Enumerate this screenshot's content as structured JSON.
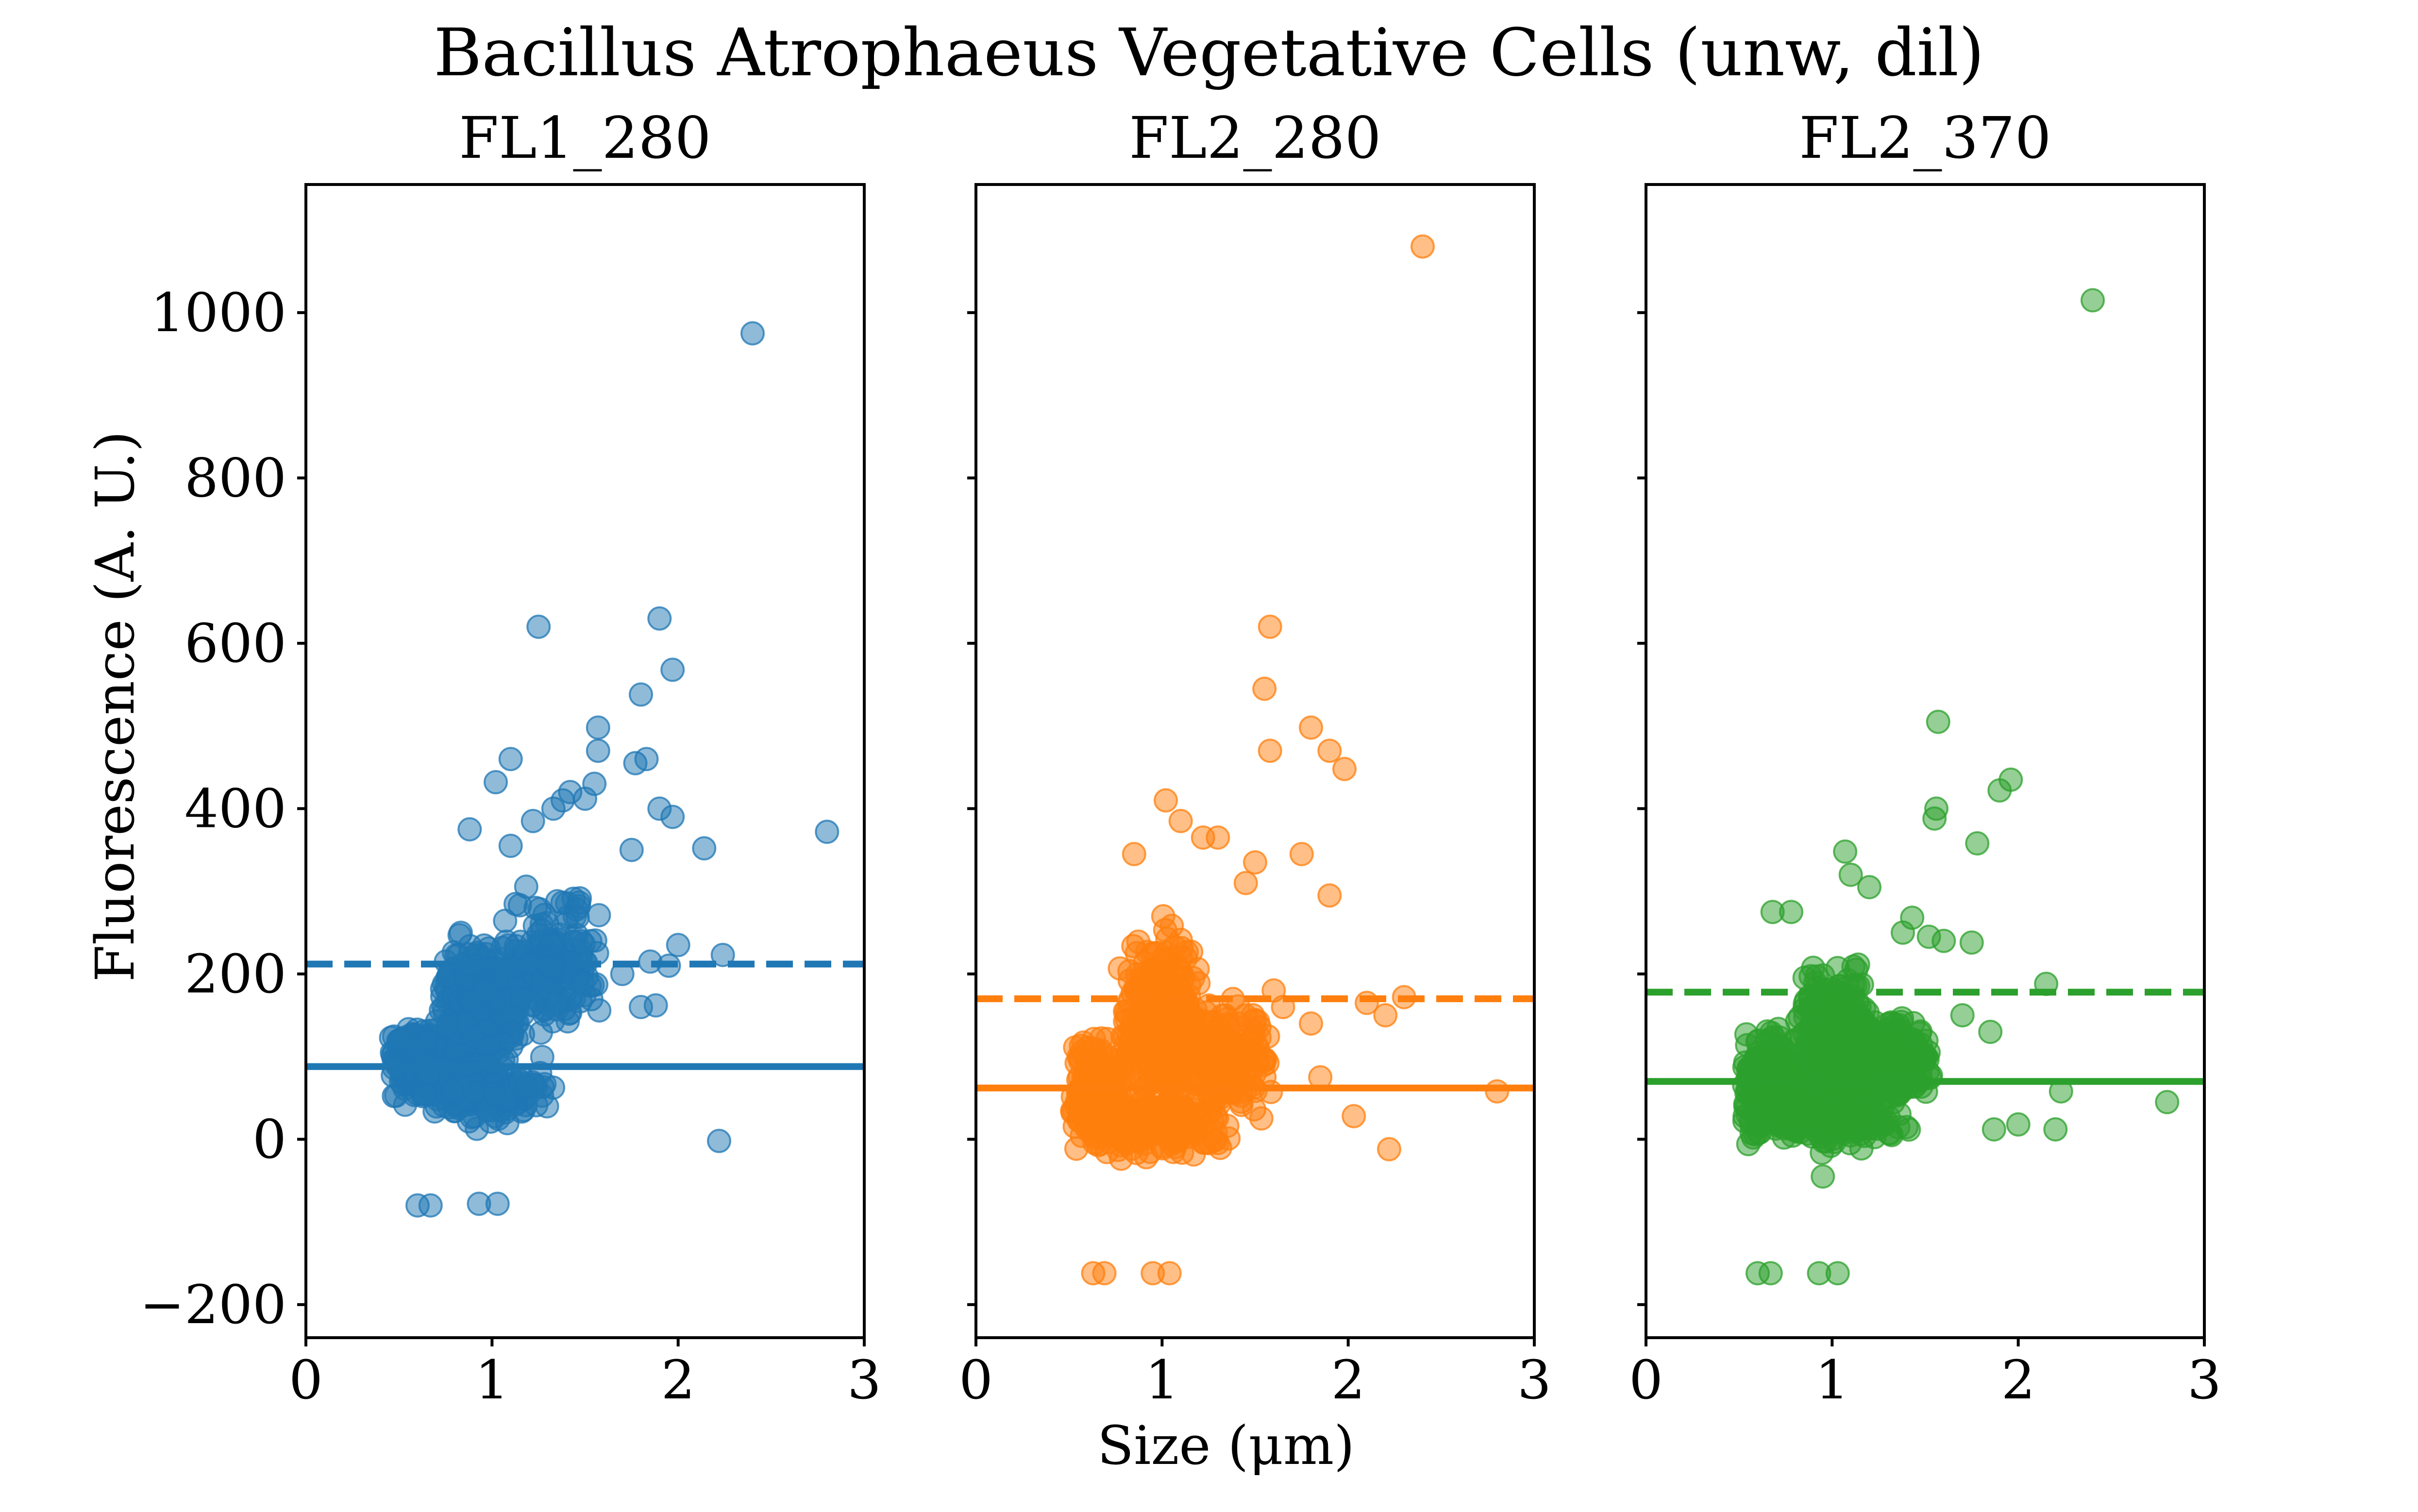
{
  "figure": {
    "suptitle": "Bacillus Atrophaeus Vegetative Cells (unw, dil)",
    "xlabel": "Size (μm)",
    "ylabel": "Fluorescence (A. U.)"
  },
  "chart_data": [
    {
      "type": "scatter",
      "title": "FL1_280",
      "color": "#1f77b4",
      "xlim": [
        0,
        3
      ],
      "ylim": [
        -240,
        1155
      ],
      "xticks": [
        "0",
        "1",
        "2",
        "3"
      ],
      "yticks": [
        "−200",
        "0",
        "200",
        "400",
        "600",
        "800",
        "1000"
      ],
      "hlines": [
        {
          "y": 212,
          "style": "dashed"
        },
        {
          "y": 88,
          "style": "solid"
        }
      ],
      "outliers": [
        [
          2.4,
          975
        ],
        [
          1.25,
          620
        ],
        [
          1.9,
          630
        ],
        [
          1.97,
          568
        ],
        [
          1.8,
          538
        ],
        [
          1.83,
          460
        ],
        [
          1.77,
          455
        ],
        [
          1.57,
          498
        ],
        [
          1.57,
          470
        ],
        [
          1.1,
          460
        ],
        [
          1.02,
          432
        ],
        [
          1.55,
          430
        ],
        [
          1.9,
          400
        ],
        [
          1.97,
          390
        ],
        [
          2.8,
          372
        ],
        [
          2.14,
          352
        ],
        [
          1.42,
          420
        ],
        [
          1.5,
          412
        ],
        [
          1.38,
          410
        ],
        [
          1.33,
          400
        ],
        [
          1.22,
          385
        ],
        [
          0.88,
          375
        ],
        [
          1.1,
          355
        ],
        [
          1.75,
          350
        ],
        [
          2.0,
          235
        ],
        [
          2.24,
          223
        ],
        [
          2.22,
          -2
        ],
        [
          0.6,
          -80
        ],
        [
          0.67,
          -80
        ],
        [
          0.93,
          -78
        ],
        [
          1.03,
          -78
        ],
        [
          1.85,
          215
        ],
        [
          1.95,
          210
        ],
        [
          1.8,
          160
        ],
        [
          1.88,
          162
        ],
        [
          1.7,
          200
        ]
      ],
      "cluster": [
        {
          "x": [
            0.45,
            0.8
          ],
          "y": [
            30,
            160
          ],
          "n": 260
        },
        {
          "x": [
            0.7,
            1.2
          ],
          "y": [
            60,
            270
          ],
          "n": 340
        },
        {
          "x": [
            1.05,
            1.6
          ],
          "y": [
            100,
            320
          ],
          "n": 180
        },
        {
          "x": [
            0.55,
            1.35
          ],
          "y": [
            10,
            110
          ],
          "n": 200
        }
      ]
    },
    {
      "type": "scatter",
      "title": "FL2_280",
      "color": "#ff7f0e",
      "xlim": [
        0,
        3
      ],
      "ylim": [
        -240,
        1155
      ],
      "xticks": [
        "0",
        "1",
        "2",
        "3"
      ],
      "yticks": [],
      "hlines": [
        {
          "y": 170,
          "style": "dashed"
        },
        {
          "y": 62,
          "style": "solid"
        }
      ],
      "outliers": [
        [
          2.4,
          1080
        ],
        [
          1.58,
          620
        ],
        [
          1.55,
          545
        ],
        [
          1.8,
          498
        ],
        [
          1.58,
          470
        ],
        [
          1.9,
          470
        ],
        [
          1.98,
          448
        ],
        [
          1.02,
          410
        ],
        [
          1.1,
          385
        ],
        [
          1.22,
          365
        ],
        [
          1.3,
          365
        ],
        [
          0.85,
          345
        ],
        [
          1.75,
          345
        ],
        [
          1.9,
          295
        ],
        [
          1.5,
          335
        ],
        [
          1.45,
          310
        ],
        [
          2.1,
          165
        ],
        [
          2.3,
          172
        ],
        [
          2.2,
          150
        ],
        [
          2.03,
          28
        ],
        [
          2.22,
          -12
        ],
        [
          2.8,
          58
        ],
        [
          0.63,
          -162
        ],
        [
          0.69,
          -162
        ],
        [
          0.95,
          -162
        ],
        [
          1.04,
          -162
        ],
        [
          1.8,
          140
        ],
        [
          1.6,
          180
        ],
        [
          1.65,
          160
        ],
        [
          1.85,
          75
        ]
      ],
      "cluster": [
        {
          "x": [
            0.5,
            0.8
          ],
          "y": [
            -20,
            140
          ],
          "n": 240
        },
        {
          "x": [
            0.75,
            1.25
          ],
          "y": [
            0,
            280
          ],
          "n": 360
        },
        {
          "x": [
            1.1,
            1.6
          ],
          "y": [
            20,
            180
          ],
          "n": 180
        },
        {
          "x": [
            0.5,
            1.4
          ],
          "y": [
            -30,
            60
          ],
          "n": 200
        }
      ]
    },
    {
      "type": "scatter",
      "title": "FL2_370",
      "color": "#2ca02c",
      "xlim": [
        0,
        3
      ],
      "ylim": [
        -240,
        1155
      ],
      "xticks": [
        "0",
        "1",
        "2",
        "3"
      ],
      "yticks": [],
      "hlines": [
        {
          "y": 178,
          "style": "dashed"
        },
        {
          "y": 70,
          "style": "solid"
        }
      ],
      "outliers": [
        [
          2.4,
          1015
        ],
        [
          1.57,
          505
        ],
        [
          1.96,
          435
        ],
        [
          1.9,
          422
        ],
        [
          1.56,
          400
        ],
        [
          1.55,
          388
        ],
        [
          1.78,
          358
        ],
        [
          1.07,
          348
        ],
        [
          1.1,
          320
        ],
        [
          1.2,
          305
        ],
        [
          1.43,
          268
        ],
        [
          1.38,
          250
        ],
        [
          1.52,
          245
        ],
        [
          1.6,
          240
        ],
        [
          1.75,
          238
        ],
        [
          0.68,
          275
        ],
        [
          0.78,
          275
        ],
        [
          2.15,
          188
        ],
        [
          2.0,
          18
        ],
        [
          2.23,
          58
        ],
        [
          2.2,
          12
        ],
        [
          2.8,
          45
        ],
        [
          1.87,
          12
        ],
        [
          0.6,
          -162
        ],
        [
          0.67,
          -162
        ],
        [
          0.93,
          -162
        ],
        [
          1.03,
          -162
        ],
        [
          0.95,
          -45
        ],
        [
          1.85,
          130
        ],
        [
          1.7,
          150
        ]
      ],
      "cluster": [
        {
          "x": [
            0.5,
            0.85
          ],
          "y": [
            -10,
            150
          ],
          "n": 240
        },
        {
          "x": [
            0.8,
            1.25
          ],
          "y": [
            10,
            230
          ],
          "n": 340
        },
        {
          "x": [
            1.05,
            1.6
          ],
          "y": [
            20,
            160
          ],
          "n": 170
        },
        {
          "x": [
            0.5,
            1.45
          ],
          "y": [
            -20,
            70
          ],
          "n": 200
        }
      ]
    }
  ]
}
